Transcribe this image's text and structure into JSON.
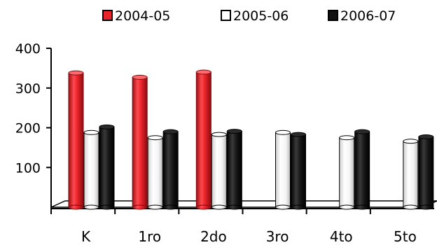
{
  "chart_data": {
    "type": "bar",
    "title": "",
    "xlabel": "",
    "ylabel": "",
    "categories": [
      "K",
      "1ro",
      "2do",
      "3ro",
      "4to",
      "5to"
    ],
    "series": [
      {
        "name": "2004-05",
        "color": "#e8232a",
        "values": [
          338,
          327,
          340,
          null,
          null,
          null
        ]
      },
      {
        "name": "2005-06",
        "color": "#ffffff",
        "values": [
          188,
          175,
          183,
          188,
          175,
          166
        ]
      },
      {
        "name": "2006-07",
        "color": "#111111",
        "values": [
          202,
          190,
          191,
          183,
          190,
          177
        ]
      }
    ],
    "ylim": [
      0,
      400
    ],
    "yticks": [
      "100",
      "200",
      "300",
      "400"
    ],
    "grid": false,
    "legend_position": "top",
    "style": "3d-cylinder"
  }
}
